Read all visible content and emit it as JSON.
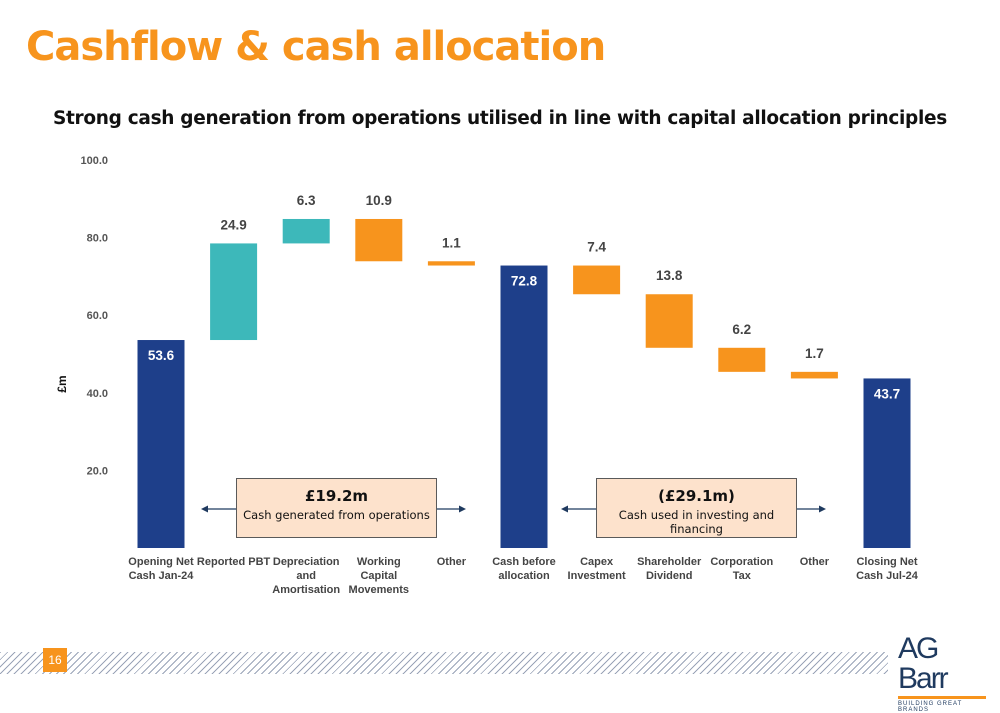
{
  "slide": {
    "title": "Cashflow & cash allocation",
    "subtitle": "Strong cash generation from operations utilised in line with capital allocation principles",
    "page_number": "16"
  },
  "callouts": [
    {
      "amount": "£19.2m",
      "text": "Cash generated from operations"
    },
    {
      "amount": "(£29.1m)",
      "text": "Cash used in investing and financing"
    }
  ],
  "logo": {
    "name": "AG Barr",
    "tagline": "BUILDING GREAT BRANDS"
  },
  "colors": {
    "total": "#1E3F8A",
    "increase": "#3DB8BA",
    "decrease": "#F7941D",
    "accent": "#F7941D"
  },
  "chart_data": {
    "type": "waterfall",
    "ylabel": "£m",
    "ylim": [
      0,
      100
    ],
    "yticks": [
      "20.0",
      "40.0",
      "60.0",
      "80.0",
      "100.0"
    ],
    "ytick_values": [
      20,
      40,
      60,
      80,
      100
    ],
    "bars": [
      {
        "category": [
          "Opening Net",
          "Cash Jan-24"
        ],
        "label": "53.6",
        "kind": "total",
        "base": 0,
        "top": 53.6
      },
      {
        "category": [
          "Reported PBT"
        ],
        "label": "24.9",
        "kind": "increase",
        "base": 53.6,
        "top": 78.5
      },
      {
        "category": [
          "Depreciation",
          "and",
          "Amortisation"
        ],
        "label": "6.3",
        "kind": "increase",
        "base": 78.5,
        "top": 84.8
      },
      {
        "category": [
          "Working",
          "Capital",
          "Movements"
        ],
        "label": "10.9",
        "kind": "decrease",
        "base": 73.9,
        "top": 84.8
      },
      {
        "category": [
          "Other"
        ],
        "label": "1.1",
        "kind": "decrease",
        "base": 72.8,
        "top": 73.9
      },
      {
        "category": [
          "Cash before",
          "allocation"
        ],
        "label": "72.8",
        "kind": "total",
        "base": 0,
        "top": 72.8
      },
      {
        "category": [
          "Capex",
          "Investment"
        ],
        "label": "7.4",
        "kind": "decrease",
        "base": 65.4,
        "top": 72.8
      },
      {
        "category": [
          "Shareholder",
          "Dividend"
        ],
        "label": "13.8",
        "kind": "decrease",
        "base": 51.6,
        "top": 65.4
      },
      {
        "category": [
          "Corporation",
          "Tax"
        ],
        "label": "6.2",
        "kind": "decrease",
        "base": 45.4,
        "top": 51.6
      },
      {
        "category": [
          "Other"
        ],
        "label": "1.7",
        "kind": "decrease",
        "base": 43.7,
        "top": 45.4
      },
      {
        "category": [
          "Closing Net",
          "Cash Jul-24"
        ],
        "label": "43.7",
        "kind": "total",
        "base": 0,
        "top": 43.7
      }
    ]
  }
}
